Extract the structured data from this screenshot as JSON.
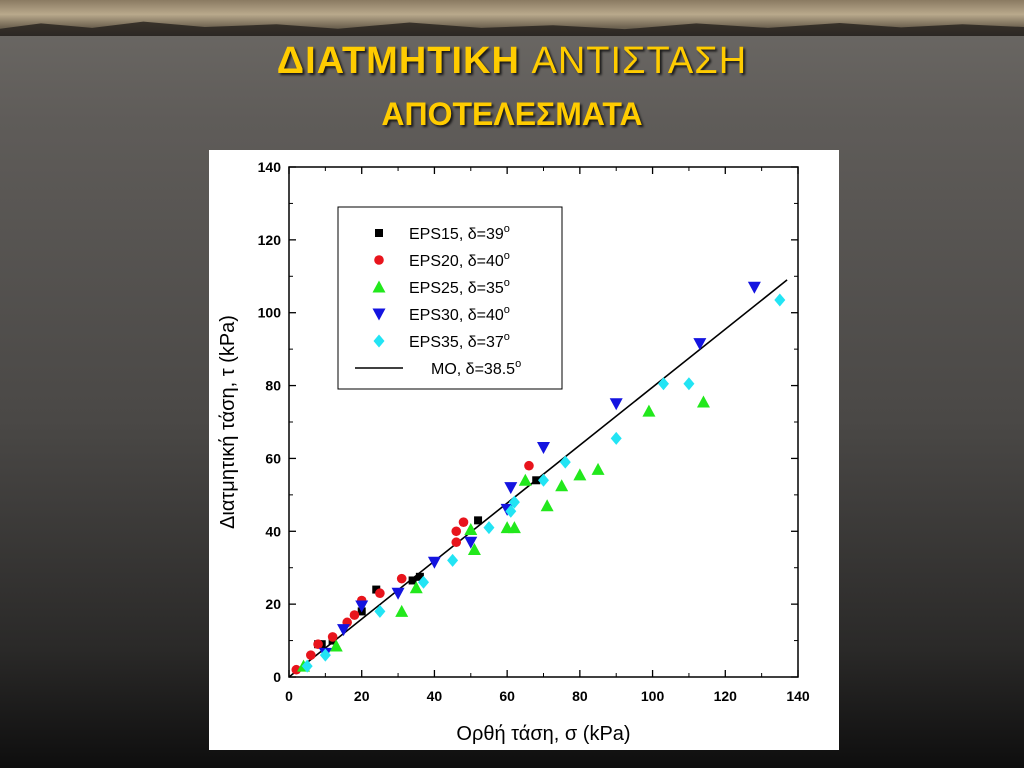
{
  "slide": {
    "title_part1": "ΔΙΑΤΜΗΤΙΚΗ",
    "title_part2": "ΑΝΤΙΣΤΑΣΗ",
    "subtitle": "ΑΠΟΤΕΛΕΣΜΑΤΑ"
  },
  "chart_data": {
    "type": "scatter",
    "xlabel": "Ορθή τάση, σ (kPa)",
    "ylabel": "Διατμητική τάση, τ (kPa)",
    "xlim": [
      0,
      140
    ],
    "ylim": [
      0,
      140
    ],
    "xticks": [
      0,
      20,
      40,
      60,
      80,
      100,
      120,
      140
    ],
    "yticks": [
      0,
      20,
      40,
      60,
      80,
      100,
      120,
      140
    ],
    "grid": false,
    "legend_position": "top-left",
    "series": [
      {
        "name": "EPS15, δ=39",
        "name_superscript": "o",
        "marker": "square",
        "color": "#000000",
        "points": [
          [
            8,
            9
          ],
          [
            9,
            9
          ],
          [
            12,
            10
          ],
          [
            20,
            18
          ],
          [
            24,
            24
          ],
          [
            34,
            26.5
          ],
          [
            36,
            27.5
          ],
          [
            52,
            43
          ],
          [
            68,
            54
          ]
        ]
      },
      {
        "name": "EPS20, δ=40",
        "name_superscript": "o",
        "marker": "circle",
        "color": "#e8141c",
        "points": [
          [
            2,
            2
          ],
          [
            6,
            6
          ],
          [
            8,
            9
          ],
          [
            12,
            11
          ],
          [
            16,
            15
          ],
          [
            18,
            17
          ],
          [
            20,
            21
          ],
          [
            25,
            23
          ],
          [
            31,
            27
          ],
          [
            46,
            37
          ],
          [
            46,
            40
          ],
          [
            48,
            42.5
          ],
          [
            66,
            58
          ]
        ]
      },
      {
        "name": "EPS25, δ=35",
        "name_superscript": "o",
        "marker": "triangle-up",
        "color": "#22e81c",
        "points": [
          [
            4,
            3
          ],
          [
            13,
            8.5
          ],
          [
            31,
            18
          ],
          [
            35,
            24.5
          ],
          [
            50,
            40.5
          ],
          [
            51,
            35
          ],
          [
            60,
            41
          ],
          [
            62,
            41
          ],
          [
            65,
            54
          ],
          [
            71,
            47
          ],
          [
            75,
            52.5
          ],
          [
            80,
            55.5
          ],
          [
            85,
            57
          ],
          [
            99,
            73
          ],
          [
            114,
            75.5
          ]
        ]
      },
      {
        "name": "EPS30, δ=40",
        "name_superscript": "o",
        "marker": "triangle-down",
        "color": "#1414e0",
        "points": [
          [
            10,
            6.5
          ],
          [
            15,
            13
          ],
          [
            20,
            19.5
          ],
          [
            30,
            23
          ],
          [
            40,
            31.5
          ],
          [
            50,
            37
          ],
          [
            60,
            46
          ],
          [
            61,
            52
          ],
          [
            70,
            63
          ],
          [
            90,
            75
          ],
          [
            113,
            91.5
          ],
          [
            128,
            107
          ]
        ]
      },
      {
        "name": "EPS35, δ=37",
        "name_superscript": "o",
        "marker": "diamond",
        "color": "#22e4f4",
        "points": [
          [
            5,
            3
          ],
          [
            10,
            6
          ],
          [
            25,
            18
          ],
          [
            37,
            26
          ],
          [
            45,
            32
          ],
          [
            55,
            41
          ],
          [
            61,
            45.5
          ],
          [
            62,
            48
          ],
          [
            70,
            54
          ],
          [
            76,
            59
          ],
          [
            90,
            65.5
          ],
          [
            103,
            80.5
          ],
          [
            110,
            80.5
          ],
          [
            135,
            103.5
          ]
        ]
      },
      {
        "name": "ΜΟ,   δ=38.5",
        "name_superscript": "o",
        "marker": "line",
        "color": "#000000",
        "line_x": [
          0,
          137
        ],
        "line_y": [
          0,
          109
        ]
      }
    ]
  }
}
